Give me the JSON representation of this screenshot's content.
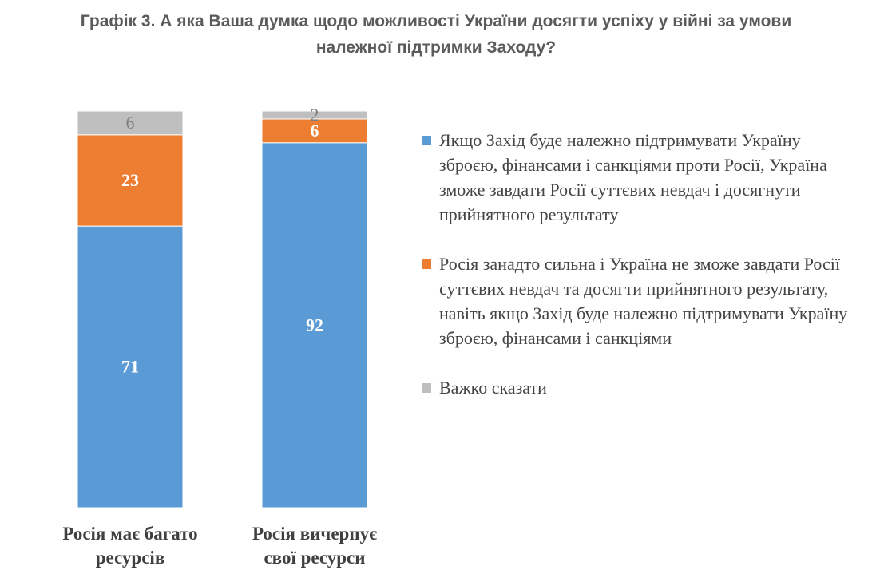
{
  "title": {
    "line1": "Графік 3. А яка Ваша думка щодо можливості України досягти успіху у війні за умови",
    "line2": "належної підтримки Заходу?"
  },
  "colors": {
    "series1": "#5b9bd5",
    "series2": "#ed7d31",
    "series3": "#bfbfbf"
  },
  "chart_data": {
    "type": "bar",
    "stacked": true,
    "categories": [
      "Росія має багато ресурсів",
      "Росія вичерпує свої ресурси"
    ],
    "category_lines": [
      [
        "Росія має багато",
        "ресурсів"
      ],
      [
        "Росія вичерпує",
        "свої ресурси"
      ]
    ],
    "series": [
      {
        "name": "Якщо Захід буде належно підтримувати Україну зброєю, фінансами і санкціями проти Росії, Україна зможе завдати Росії суттєвих невдач і досягнути прийнятного результату",
        "values": [
          71,
          92
        ]
      },
      {
        "name": "Росія занадто сильна і Україна не зможе завдати Росії суттєвих невдач та досягти прийнятного результату, навіть якщо Захід буде належно підтримувати Україну зброєю, фінансами і санкціями",
        "values": [
          23,
          6
        ]
      },
      {
        "name": "Важко сказати",
        "values": [
          6,
          2
        ]
      }
    ],
    "ylim": [
      0,
      100
    ],
    "grid": false,
    "legend_position": "right"
  }
}
